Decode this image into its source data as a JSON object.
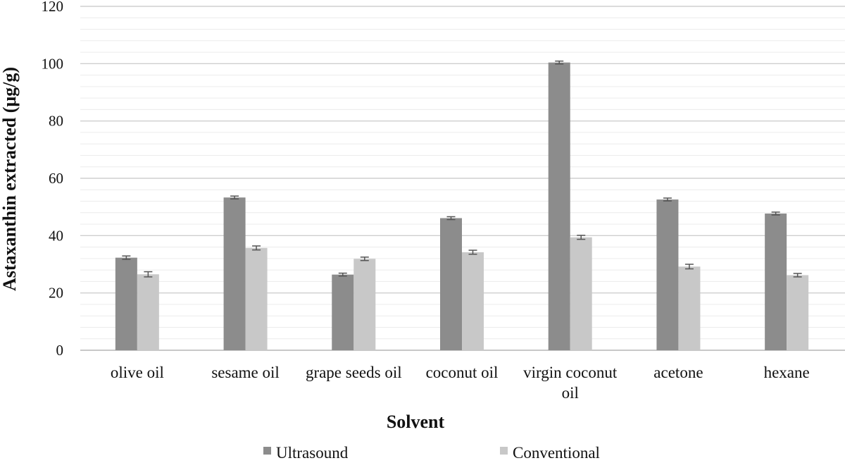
{
  "chart_data": {
    "type": "bar",
    "xlabel": "Solvent",
    "ylabel": "Astaxanthin extracted (μg/g)",
    "ylim": [
      0,
      120
    ],
    "yticks": [
      0,
      20,
      40,
      60,
      80,
      100,
      120
    ],
    "grid": true,
    "legend_position": "bottom",
    "categories": [
      [
        "olive oil"
      ],
      [
        "sesame oil"
      ],
      [
        "grape seeds oil"
      ],
      [
        "coconut oil"
      ],
      [
        "virgin coconut",
        "oil"
      ],
      [
        "acetone"
      ],
      [
        "hexane"
      ]
    ],
    "series": [
      {
        "name": "Ultrasound",
        "color": "#8c8c8c",
        "values": [
          32.3,
          53.3,
          26.4,
          46.1,
          100.4,
          52.6,
          47.7
        ],
        "errors": [
          0.6,
          0.5,
          0.5,
          0.5,
          0.5,
          0.5,
          0.5
        ]
      },
      {
        "name": "Conventional",
        "color": "#c8c8c8",
        "values": [
          26.5,
          35.7,
          31.9,
          34.2,
          39.4,
          29.2,
          26.2
        ],
        "errors": [
          0.9,
          0.7,
          0.6,
          0.7,
          0.7,
          0.8,
          0.6
        ]
      }
    ]
  }
}
